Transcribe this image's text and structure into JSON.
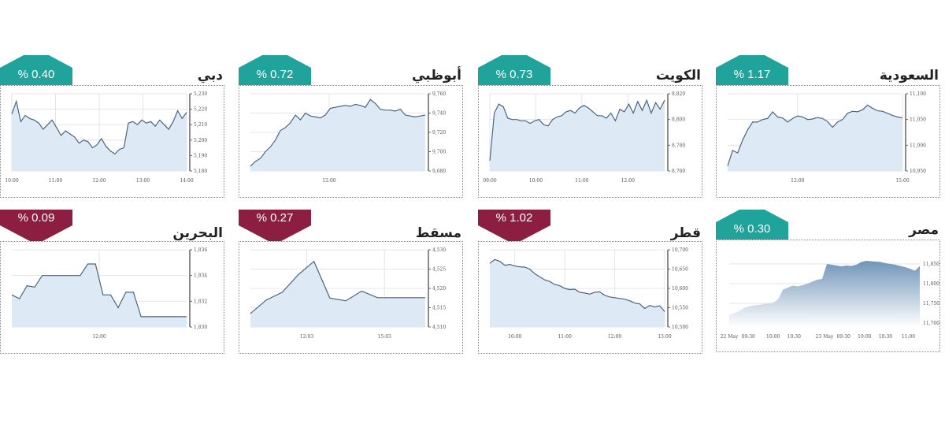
{
  "colors": {
    "up": "#1fa39a",
    "down": "#8c1e41",
    "line": "#4a6580",
    "fill": "#dde9f5",
    "egypt_fill": "#6f95b9"
  },
  "chart_data": [
    {
      "id": "dubai",
      "type": "area",
      "title": "دبي",
      "change": "% 0.40",
      "direction": "up",
      "ylim": [
        5180,
        5230
      ],
      "yticks": [
        "5,230",
        "5,220",
        "5,210",
        "5,200",
        "5,190",
        "5,180"
      ],
      "ytick_values": [
        5230,
        5220,
        5210,
        5200,
        5190,
        5180
      ],
      "x_range": [
        10,
        14
      ],
      "xticks": [
        {
          "label": "10:00",
          "x": 10
        },
        {
          "label": "11:00",
          "x": 11
        },
        {
          "label": "12:00",
          "x": 12
        },
        {
          "label": "13:00",
          "x": 13
        },
        {
          "label": "14:00",
          "x": 14
        }
      ],
      "values": [
        5217,
        5225,
        5212,
        5216,
        5214,
        5213,
        5211,
        5207,
        5210,
        5213,
        5208,
        5203,
        5206,
        5204,
        5202,
        5198,
        5200,
        5199,
        5195,
        5197,
        5201,
        5196,
        5193,
        5191,
        5194,
        5195,
        5211,
        5212,
        5210,
        5213,
        5211,
        5212,
        5209,
        5213,
        5210,
        5207,
        5212,
        5219,
        5214,
        5218
      ]
    },
    {
      "id": "abudhabi",
      "type": "area",
      "title": "أبوظبي",
      "change": "% 0.72",
      "direction": "up",
      "ylim": [
        9680,
        9760
      ],
      "yticks": [
        "9,760",
        "9,740",
        "9,720",
        "9,700",
        "9,680"
      ],
      "ytick_values": [
        9760,
        9740,
        9720,
        9700,
        9680
      ],
      "x_range": [
        10,
        14
      ],
      "xticks": [
        {
          "label": "12:00",
          "x": 11.8
        }
      ],
      "values": [
        9685,
        9690,
        9693,
        9700,
        9705,
        9712,
        9722,
        9725,
        9730,
        9738,
        9733,
        9740,
        9737,
        9736,
        9735,
        9738,
        9745,
        9746,
        9747,
        9748,
        9747,
        9749,
        9748,
        9746,
        9754,
        9750,
        9744,
        9743,
        9743,
        9742,
        9744,
        9738,
        9737,
        9736,
        9737,
        9738
      ]
    },
    {
      "id": "kuwait",
      "type": "area",
      "title": "الكويت",
      "change": "% 0.73",
      "direction": "up",
      "ylim": [
        8760,
        8820
      ],
      "yticks": [
        "8,820",
        "8,800",
        "8,780",
        "8,760"
      ],
      "ytick_values": [
        8820,
        8800,
        8780,
        8760
      ],
      "x_range": [
        9,
        12.8
      ],
      "xticks": [
        {
          "label": "09:00",
          "x": 9
        },
        {
          "label": "10:00",
          "x": 10
        },
        {
          "label": "11:00",
          "x": 11
        },
        {
          "label": "12:00",
          "x": 12
        }
      ],
      "values": [
        8768,
        8805,
        8812,
        8810,
        8801,
        8800,
        8800,
        8799,
        8799,
        8797,
        8799,
        8800,
        8796,
        8795,
        8800,
        8802,
        8803,
        8806,
        8807,
        8805,
        8809,
        8811,
        8809,
        8806,
        8803,
        8803,
        8801,
        8805,
        8799,
        8808,
        8806,
        8812,
        8805,
        8814,
        8807,
        8815,
        8805,
        8813,
        8808,
        8815
      ]
    },
    {
      "id": "saudi",
      "type": "area",
      "title": "السعودية",
      "change": "% 1.17",
      "direction": "up",
      "ylim": [
        10950,
        11100
      ],
      "yticks": [
        "11,100",
        "11,050",
        "11,000",
        "10,950"
      ],
      "ytick_values": [
        11100,
        11050,
        11000,
        10950
      ],
      "x_range": [
        10,
        15
      ],
      "xticks": [
        {
          "label": "12:00",
          "x": 12
        },
        {
          "label": "15:00",
          "x": 15
        }
      ],
      "values": [
        10960,
        10990,
        10985,
        11010,
        11030,
        11045,
        11045,
        11050,
        11052,
        11065,
        11055,
        11053,
        11045,
        11052,
        11057,
        11055,
        11050,
        11051,
        11054,
        11052,
        11046,
        11035,
        11045,
        11050,
        11062,
        11066,
        11065,
        11069,
        11078,
        11072,
        11067,
        11066,
        11062,
        11058,
        11055,
        11053
      ]
    },
    {
      "id": "bahrain",
      "type": "area",
      "title": "البحرين",
      "change": "% 0.09",
      "direction": "down",
      "ylim": [
        1830,
        1836
      ],
      "yticks": [
        "1,836",
        "1,834",
        "1,832",
        "1,830"
      ],
      "ytick_values": [
        1836,
        1834,
        1832,
        1830
      ],
      "x_range": [
        9.5,
        13.5
      ],
      "xticks": [
        {
          "label": "12:00",
          "x": 11.5
        }
      ],
      "values": [
        1832.5,
        1832.2,
        1833.2,
        1833.1,
        1834,
        1834,
        1834,
        1834,
        1834,
        1834,
        1834.9,
        1834.9,
        1832.5,
        1832.5,
        1831.5,
        1832.7,
        1832.7,
        1830.8,
        1830.8,
        1830.8,
        1830.8,
        1830.8,
        1830.8,
        1830.8
      ]
    },
    {
      "id": "muscat",
      "type": "area",
      "title": "مسقط",
      "change": "% 0.27",
      "direction": "down",
      "ylim": [
        4510,
        4530
      ],
      "yticks": [
        "4,530",
        "4,525",
        "4,520",
        "4,515",
        "4,510"
      ],
      "ytick_values": [
        4530,
        4525,
        4520,
        4515,
        4510
      ],
      "x_range": [
        9,
        18
      ],
      "xticks": [
        {
          "label": "12:03",
          "x": 11.9
        },
        {
          "label": "15:03",
          "x": 15.9
        }
      ],
      "values": [
        4513.5,
        4517,
        4519,
        4523.5,
        4527,
        4517.5,
        4516.8,
        4519.3,
        4517.6,
        4517.6,
        4517.6,
        4517.6
      ]
    },
    {
      "id": "qatar",
      "type": "area",
      "title": "قطر",
      "change": "% 1.02",
      "direction": "down",
      "ylim": [
        10500,
        10700
      ],
      "yticks": [
        "10,700",
        "10,650",
        "10,600",
        "10,550",
        "10,500"
      ],
      "ytick_values": [
        10700,
        10650,
        10600,
        10550,
        10500
      ],
      "x_range": [
        9.5,
        13
      ],
      "xticks": [
        {
          "label": "10:00",
          "x": 10
        },
        {
          "label": "11:00",
          "x": 11
        },
        {
          "label": "12:00",
          "x": 12
        },
        {
          "label": "13:00",
          "x": 13
        }
      ],
      "values": [
        10665,
        10675,
        10670,
        10660,
        10662,
        10658,
        10656,
        10655,
        10650,
        10638,
        10630,
        10622,
        10618,
        10610,
        10607,
        10600,
        10597,
        10598,
        10590,
        10588,
        10585,
        10590,
        10591,
        10582,
        10578,
        10576,
        10574,
        10572,
        10568,
        10562,
        10560,
        10548,
        10556,
        10552,
        10555,
        10540
      ]
    },
    {
      "id": "egypt",
      "type": "area",
      "title": "مصر",
      "change": "% 0.30",
      "direction": "up",
      "ylim": [
        11690,
        11870
      ],
      "yticks": [
        "11,850",
        "11,800",
        "11,750",
        "11,700"
      ],
      "ytick_values": [
        11850,
        11800,
        11750,
        11700
      ],
      "x_range": [
        0,
        10
      ],
      "xticks": [
        {
          "label": "22 May",
          "x": 0
        },
        {
          "label": "09:30",
          "x": 1
        },
        {
          "label": "10:00",
          "x": 2.3
        },
        {
          "label": "10:30",
          "x": 3.4
        },
        {
          "label": "23 May",
          "x": 5
        },
        {
          "label": "09:30",
          "x": 6
        },
        {
          "label": "10:00",
          "x": 7.1
        },
        {
          "label": "10:30",
          "x": 8.2
        },
        {
          "label": "11:00",
          "x": 9.4
        }
      ],
      "values": [
        11720,
        11725,
        11730,
        11738,
        11742,
        11745,
        11746,
        11748,
        11750,
        11752,
        11760,
        11785,
        11790,
        11795,
        11793,
        11796,
        11800,
        11805,
        11810,
        11812,
        11850,
        11848,
        11846,
        11844,
        11846,
        11845,
        11848,
        11855,
        11858,
        11857,
        11856,
        11855,
        11852,
        11850,
        11848,
        11845,
        11842,
        11838,
        11833,
        11845
      ]
    }
  ]
}
